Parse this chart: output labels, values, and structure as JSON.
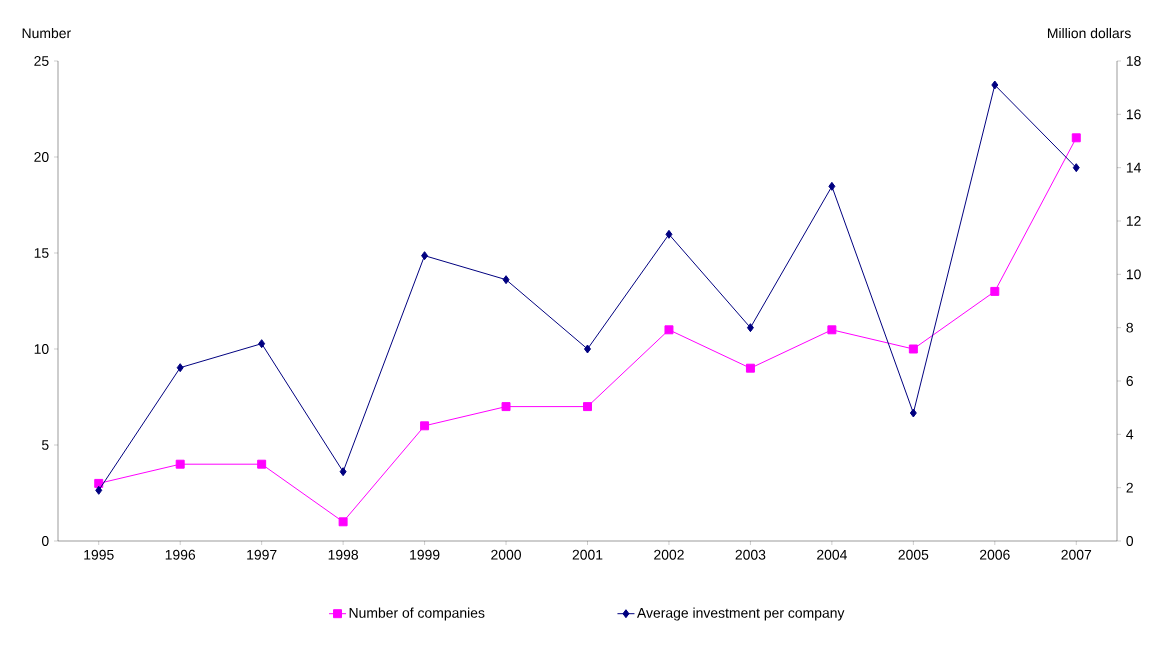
{
  "chart_data": {
    "type": "line",
    "categories": [
      "1995",
      "1996",
      "1997",
      "1998",
      "1999",
      "2000",
      "2001",
      "2002",
      "2003",
      "2004",
      "2005",
      "2006",
      "2007"
    ],
    "ylabel": "Number",
    "y2label": "Million dollars",
    "ylim": [
      0,
      25
    ],
    "yticks": [
      0,
      5,
      10,
      15,
      20,
      25
    ],
    "y2lim": [
      0,
      18
    ],
    "y2ticks": [
      0,
      2,
      4,
      6,
      8,
      10,
      12,
      14,
      16,
      18
    ],
    "legend": "bottom",
    "grid": false,
    "series": [
      {
        "name": "Number of companies",
        "color": "#ff00ff",
        "marker": "square",
        "values": [
          3,
          4,
          4,
          1,
          6,
          7,
          7,
          11,
          9,
          11,
          10,
          13,
          21
        ]
      },
      {
        "name": "Average investment per company",
        "color": "#000080",
        "marker": "diamond",
        "axis": "y2",
        "values": [
          1.9,
          6.5,
          7.4,
          2.6,
          10.7,
          9.8,
          7.2,
          11.5,
          8.0,
          13.3,
          4.8,
          17.1,
          14.0
        ]
      }
    ]
  }
}
